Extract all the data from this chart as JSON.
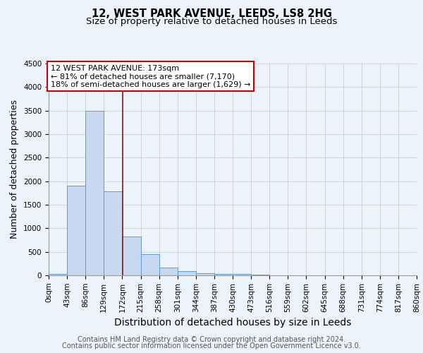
{
  "title": "12, WEST PARK AVENUE, LEEDS, LS8 2HG",
  "subtitle": "Size of property relative to detached houses in Leeds",
  "xlabel": "Distribution of detached houses by size in Leeds",
  "ylabel": "Number of detached properties",
  "bar_edges": [
    0,
    43,
    86,
    129,
    172,
    215,
    258,
    301,
    344,
    387,
    430,
    473,
    516,
    559,
    602,
    645,
    688,
    731,
    774,
    817,
    860
  ],
  "bar_heights": [
    30,
    1900,
    3500,
    1780,
    830,
    450,
    160,
    90,
    50,
    30,
    25,
    20,
    0,
    0,
    0,
    0,
    0,
    0,
    0,
    0
  ],
  "bar_color": "#c6d9f0",
  "bar_edge_color": "#5b9bd5",
  "property_size": 173,
  "vline_color": "#8b1a1a",
  "annotation_line1": "12 WEST PARK AVENUE: 173sqm",
  "annotation_line2": "← 81% of detached houses are smaller (7,170)",
  "annotation_line3": "18% of semi-detached houses are larger (1,629) →",
  "annotation_box_color": "#ffffff",
  "annotation_box_edge": "#cc0000",
  "ylim": [
    0,
    4500
  ],
  "yticks": [
    0,
    500,
    1000,
    1500,
    2000,
    2500,
    3000,
    3500,
    4000,
    4500
  ],
  "tick_labels": [
    "0sqm",
    "43sqm",
    "86sqm",
    "129sqm",
    "172sqm",
    "215sqm",
    "258sqm",
    "301sqm",
    "344sqm",
    "387sqm",
    "430sqm",
    "473sqm",
    "516sqm",
    "559sqm",
    "602sqm",
    "645sqm",
    "688sqm",
    "731sqm",
    "774sqm",
    "817sqm",
    "860sqm"
  ],
  "bg_color": "#edf3fb",
  "footer1": "Contains HM Land Registry data © Crown copyright and database right 2024.",
  "footer2": "Contains public sector information licensed under the Open Government Licence v3.0.",
  "title_fontsize": 10.5,
  "subtitle_fontsize": 9.5,
  "xlabel_fontsize": 10,
  "ylabel_fontsize": 9,
  "tick_fontsize": 7.5,
  "annotation_fontsize": 8,
  "footer_fontsize": 7
}
